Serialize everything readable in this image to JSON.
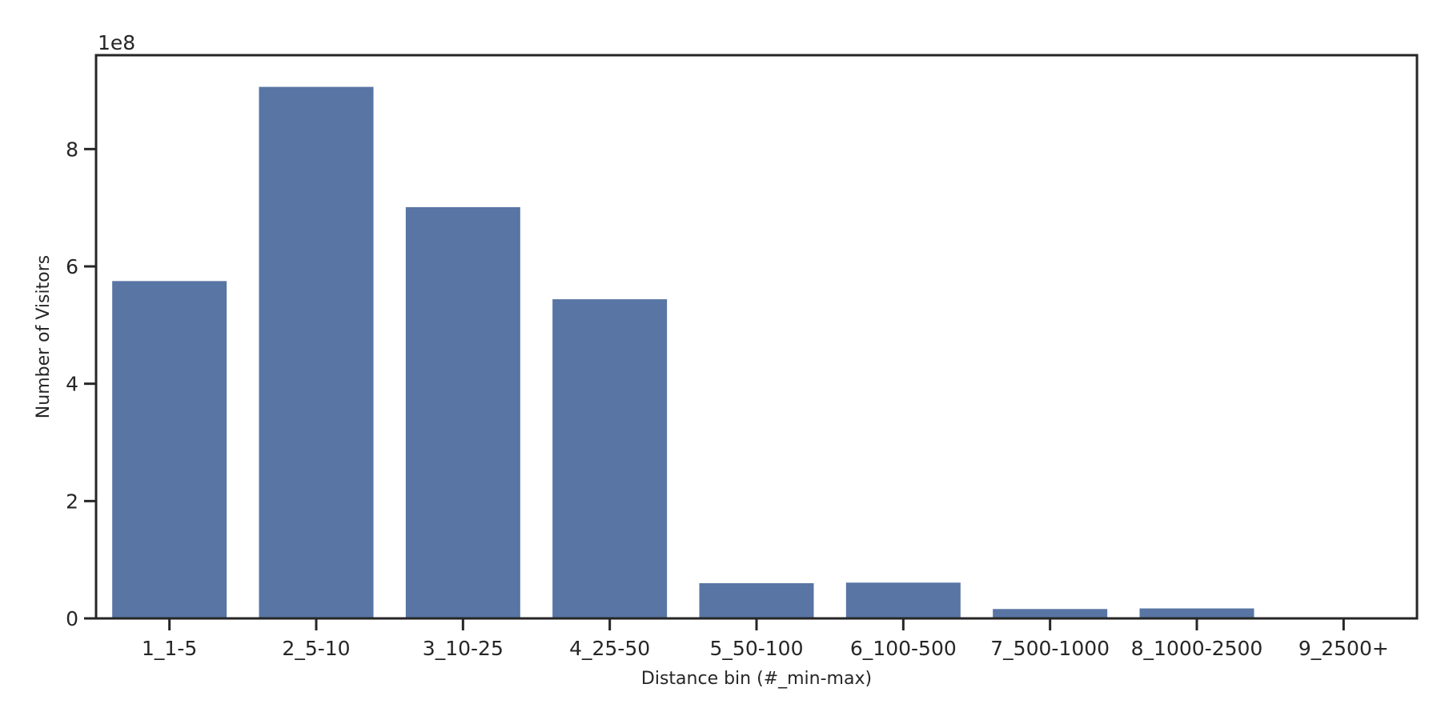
{
  "chart_data": {
    "type": "bar",
    "title": "",
    "xlabel": "Distance bin (#_min-max)",
    "ylabel": "Number of Visitors",
    "y_offset_label": "1e8",
    "categories": [
      "1_1-5",
      "2_5-10",
      "3_10-25",
      "4_25-50",
      "5_50-100",
      "6_100-500",
      "7_500-1000",
      "8_1000-2500",
      "9_2500+"
    ],
    "values": [
      575000000,
      906000000,
      701000000,
      544000000,
      60000000,
      61000000,
      16000000,
      17000000,
      300000
    ],
    "ylim": [
      0,
      960000000
    ],
    "y_ticks": [
      0,
      200000000,
      400000000,
      600000000,
      800000000
    ],
    "y_tick_labels": [
      "0",
      "2",
      "4",
      "6",
      "8"
    ],
    "bar_color": "#5875a4",
    "axis_color": "#262626",
    "grid": false,
    "legend": "none"
  }
}
